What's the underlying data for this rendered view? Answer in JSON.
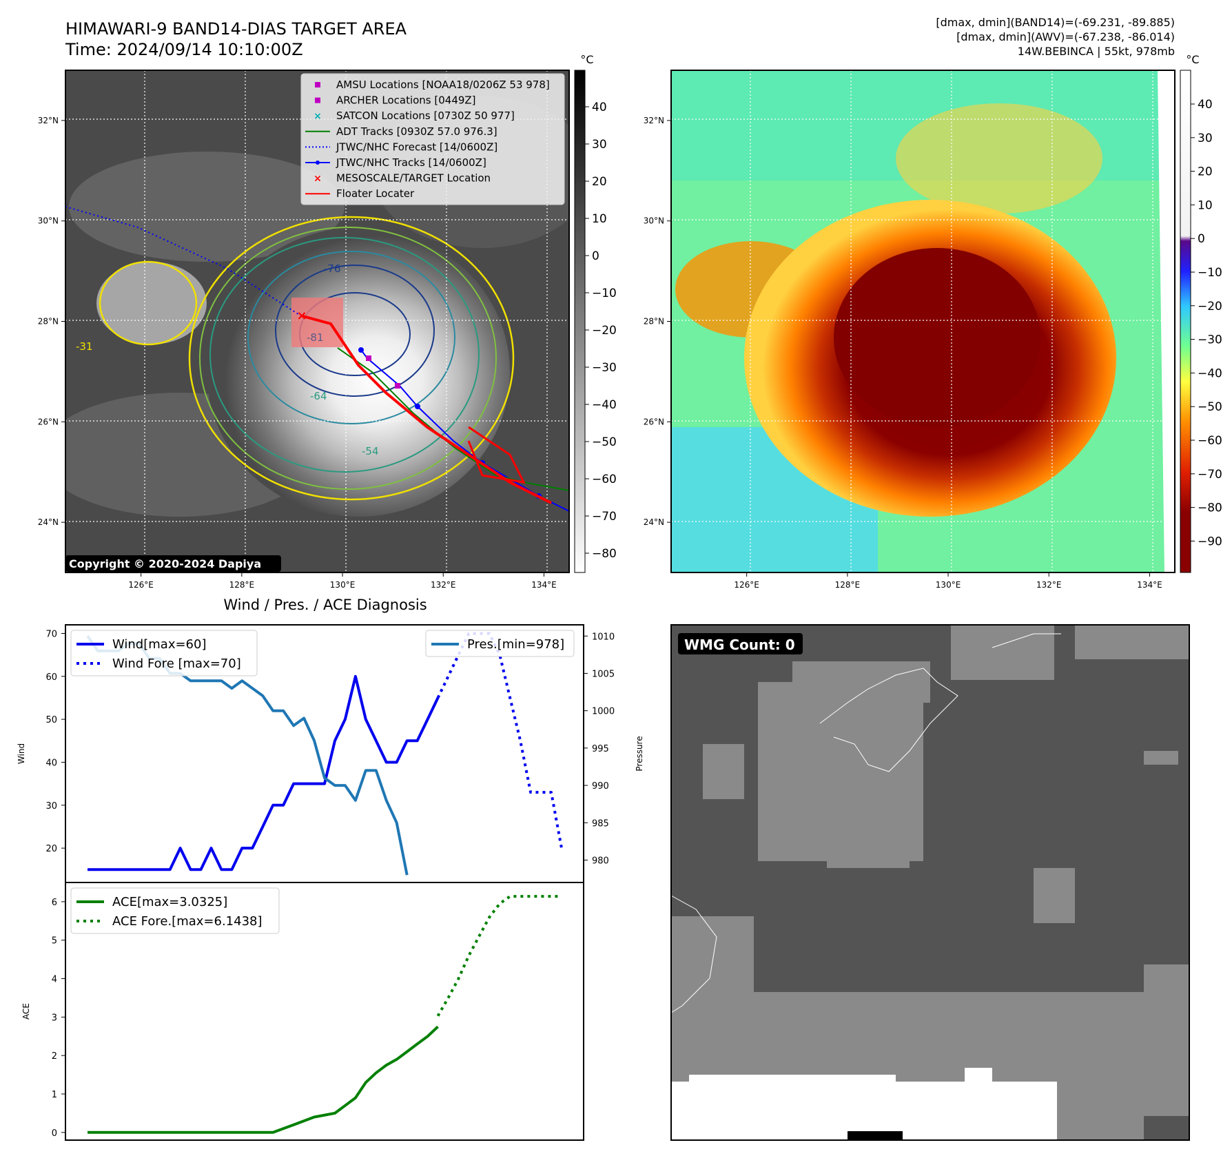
{
  "header": {
    "title": "HIMAWARI-9 BAND14-DIAS TARGET AREA",
    "time": "Time: 2024/09/14 10:10:00Z",
    "stats": [
      "[dmax, dmin](BAND14)=(-69.231, -89.885)",
      "[dmax, dmin](AWV)=(-67.238, -86.014)",
      "14W.BEBINCA | 55kt, 978mb"
    ],
    "copyright": "Copyright © 2020-2024 Dapiya"
  },
  "maps": {
    "lon_ticks": [
      "126°E",
      "128°E",
      "130°E",
      "132°E",
      "134°E"
    ],
    "lat_ticks": [
      "24°N",
      "26°N",
      "28°N",
      "30°N",
      "32°N"
    ],
    "lon_range": [
      124.5,
      134.5
    ],
    "lat_range": [
      23,
      33
    ],
    "legend": [
      {
        "label": "AMSU Locations [NOAA18/0206Z 53 978]",
        "marker": "square",
        "color": "#c000c0"
      },
      {
        "label": "ARCHER Locations [0449Z]",
        "marker": "square",
        "color": "#c000c0"
      },
      {
        "label": "SATCON Locations [0730Z 50 977]",
        "marker": "x",
        "color": "#00b0b0"
      },
      {
        "label": "ADT Tracks [0930Z 57.0 976.3]",
        "marker": "line",
        "color": "#008000"
      },
      {
        "label": "JTWC/NHC Forecast [14/0600Z]",
        "marker": "dotted",
        "color": "#0000ff"
      },
      {
        "label": "JTWC/NHC Tracks [14/0600Z]",
        "marker": "line-dot",
        "color": "#0000ff"
      },
      {
        "label": "MESOSCALE/TARGET Location",
        "marker": "x",
        "color": "#ff0000"
      },
      {
        "label": "Floater Locater",
        "marker": "line",
        "color": "#ff0000"
      }
    ],
    "contour_labels": [
      "-76",
      "-81",
      "-64",
      "-54",
      "-31"
    ],
    "left_colorbar": {
      "unit": "°C",
      "ticks": [
        "40",
        "30",
        "20",
        "10",
        "0",
        "−10",
        "−20",
        "−30",
        "−40",
        "−50",
        "−60",
        "−70",
        "−80"
      ]
    },
    "right_colorbar": {
      "unit": "°C",
      "ticks": [
        "40",
        "30",
        "20",
        "10",
        "0",
        "−10",
        "−20",
        "−30",
        "−40",
        "−50",
        "−60",
        "−70",
        "−80",
        "−90"
      ]
    }
  },
  "wmg": {
    "label": "WMG Count: 0"
  },
  "chart_data": [
    {
      "type": "line",
      "title": "Wind / Pres. / ACE Diagnosis",
      "ylabel": "Wind",
      "y2label": "Pressure",
      "ylim": [
        12,
        72
      ],
      "y2lim": [
        977,
        1011.5
      ],
      "yticks": [
        20,
        30,
        40,
        50,
        60,
        70
      ],
      "y2ticks": [
        980,
        985,
        990,
        995,
        1000,
        1005,
        1010
      ],
      "series": [
        {
          "name": "Wind[max=60]",
          "axis": "left",
          "style": "solid",
          "color": "#0000ee",
          "x": [
            0,
            1,
            2,
            3,
            4,
            5,
            6,
            7,
            8,
            9,
            10,
            11,
            12,
            13,
            14,
            15,
            16,
            17,
            18,
            19,
            20,
            21,
            22,
            23,
            24,
            25,
            26,
            27,
            28,
            29,
            30,
            31,
            32,
            33,
            34,
            35
          ],
          "y": [
            15,
            15,
            15,
            15,
            15,
            15,
            15,
            15,
            15,
            20,
            15,
            15,
            20,
            15,
            15,
            20,
            20,
            25,
            30,
            30,
            35,
            35,
            35,
            35,
            45,
            50,
            60,
            50,
            45,
            40,
            40,
            45,
            45,
            50,
            55,
            null
          ]
        },
        {
          "name": "Wind Fore [max=70]",
          "axis": "left",
          "style": "dotted",
          "color": "#0000ee",
          "x": [
            34,
            35,
            36,
            37,
            38,
            39,
            40,
            41,
            42,
            43,
            44,
            45,
            46
          ],
          "y": [
            55,
            60,
            65,
            70,
            70,
            70,
            65,
            55,
            45,
            33,
            33,
            33,
            20
          ]
        },
        {
          "name": "Pres.[min=978]",
          "axis": "right",
          "style": "solid",
          "color": "#1f77b4",
          "x": [
            0,
            1,
            2,
            3,
            4,
            5,
            6,
            7,
            8,
            9,
            10,
            11,
            12,
            13,
            14,
            15,
            16,
            17,
            18,
            19,
            20,
            21,
            22,
            23,
            24,
            25,
            26,
            27,
            28,
            29,
            30,
            31,
            32,
            33,
            34
          ],
          "y": [
            1010,
            1008,
            1008,
            1008,
            1009,
            1009,
            1007,
            1007,
            1005,
            1005,
            1004,
            1004,
            1004,
            1004,
            1003,
            1004,
            1003,
            1002,
            1000,
            1000,
            998,
            999,
            996,
            991,
            990,
            990,
            988,
            992,
            992,
            988,
            985,
            978,
            null,
            null,
            null
          ]
        }
      ]
    },
    {
      "type": "line",
      "ylabel": "ACE",
      "ylim": [
        -0.2,
        6.5
      ],
      "yticks": [
        0,
        1,
        2,
        3,
        4,
        5,
        6
      ],
      "series": [
        {
          "name": "ACE[max=3.0325]",
          "style": "solid",
          "color": "#008000",
          "x": [
            0,
            4,
            8,
            12,
            16,
            18,
            20,
            22,
            24,
            25,
            26,
            27,
            28,
            29,
            30,
            31,
            32,
            33,
            34
          ],
          "y": [
            0,
            0,
            0,
            0,
            0,
            0,
            0.2,
            0.4,
            0.5,
            0.7,
            0.9,
            1.3,
            1.55,
            1.75,
            1.9,
            2.1,
            2.3,
            2.5,
            2.75
          ]
        },
        {
          "name": "ACE Fore.[max=6.1438]",
          "style": "dotted",
          "color": "#008000",
          "x": [
            34,
            35,
            36,
            37,
            38,
            39,
            40,
            41,
            42,
            43,
            44,
            45,
            46
          ],
          "y": [
            3.03,
            3.5,
            4.0,
            4.6,
            5.1,
            5.6,
            5.95,
            6.14,
            6.14,
            6.14,
            6.14,
            6.14,
            6.14
          ]
        }
      ]
    }
  ]
}
